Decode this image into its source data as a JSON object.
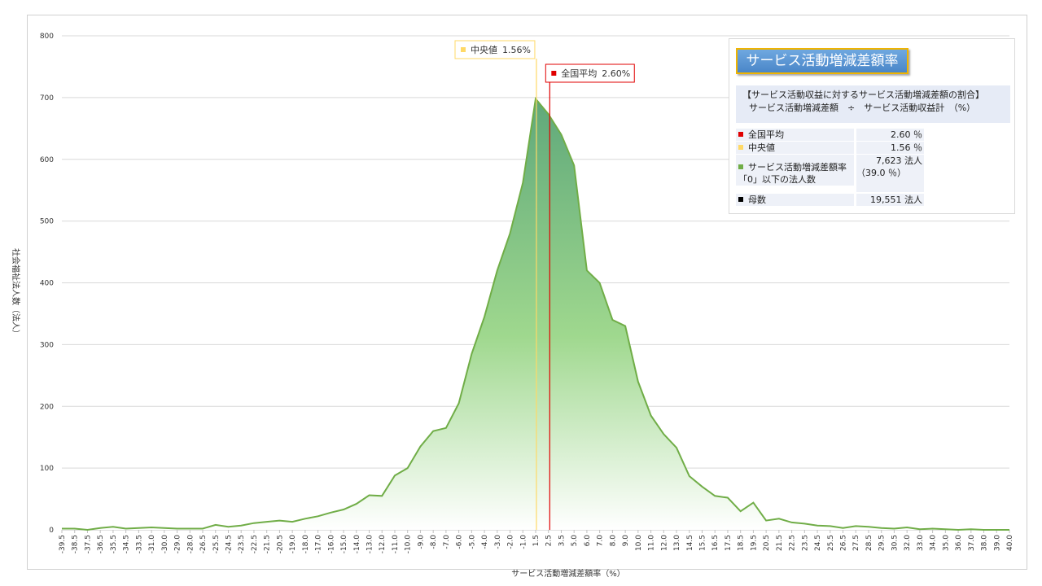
{
  "chart_data": {
    "type": "area",
    "y_label": "社会福祉法人数（法人）",
    "x_label": "サービス活動増減差額率（%）",
    "categories": [
      "-39.5",
      "-38.5",
      "-37.5",
      "-36.5",
      "-35.5",
      "-34.5",
      "-33.5",
      "-31.0",
      "-30.0",
      "-29.0",
      "-28.0",
      "-26.5",
      "-25.5",
      "-24.5",
      "-23.5",
      "-22.5",
      "-21.5",
      "-20.5",
      "-19.0",
      "-18.0",
      "-17.0",
      "-16.0",
      "-15.0",
      "-14.0",
      "-13.0",
      "-12.0",
      "-11.0",
      "-10.0",
      "-9.0",
      "-8.0",
      "-7.0",
      "-6.0",
      "-5.0",
      "-4.0",
      "-3.0",
      "-2.0",
      "-1.0",
      "1.5",
      "2.5",
      "3.5",
      "5.0",
      "6.0",
      "7.0",
      "8.0",
      "9.0",
      "10.0",
      "11.0",
      "12.0",
      "13.0",
      "14.5",
      "15.5",
      "16.5",
      "17.5",
      "18.5",
      "19.5",
      "20.5",
      "21.5",
      "22.5",
      "23.5",
      "24.5",
      "25.5",
      "26.5",
      "27.5",
      "28.5",
      "29.5",
      "30.5",
      "32.0",
      "33.0",
      "34.0",
      "35.0",
      "36.0",
      "37.0",
      "38.0",
      "39.0",
      "40.0"
    ],
    "series": [
      {
        "color": "#70ad47",
        "values": [
          2,
          2,
          0,
          3,
          5,
          2,
          3,
          4,
          3,
          2,
          2,
          2,
          8,
          5,
          7,
          11,
          13,
          15,
          13,
          18,
          22,
          28,
          33,
          42,
          56,
          55,
          88,
          100,
          135,
          160,
          165,
          205,
          285,
          345,
          420,
          480,
          562,
          698,
          673,
          640,
          590,
          420,
          400,
          340,
          330,
          240,
          185,
          155,
          133,
          87,
          70,
          55,
          52,
          30,
          44,
          15,
          18,
          12,
          10,
          7,
          6,
          3,
          6,
          5,
          3,
          2,
          4,
          1,
          2,
          1,
          0,
          1,
          0,
          0,
          0
        ]
      }
    ],
    "ylim": [
      0,
      800
    ],
    "yticks": [
      0,
      100,
      200,
      300,
      400,
      500,
      600,
      700,
      800
    ],
    "grid": true,
    "reference_lines": [
      {
        "name": "中央値",
        "value": 1.56,
        "value_label": "1.56%",
        "color": "#ffd966"
      },
      {
        "name": "全国平均",
        "value": 2.6,
        "value_label": "2.60%",
        "color": "#e00000"
      }
    ]
  },
  "info_panel": {
    "title": "サービス活動増減差額率",
    "header": [
      "【サービス活動収益に対するサービス活動増減差額の割合】",
      "サービス活動増減差額　÷　サービス活動収益計　（%）"
    ],
    "rows": [
      {
        "label": "全国平均",
        "value": "2.60 ％",
        "color": "#e00000"
      },
      {
        "label": "中央値",
        "value": "1.56 ％",
        "color": "#ffd966"
      },
      {
        "label": "サービス活動増減差額率「0」以下の法人数",
        "value": "7,623 法人",
        "sub": "（39.0 ％）",
        "color": "#70ad47"
      },
      {
        "label": "母数",
        "value": "19,551 法人",
        "color": "#000000"
      }
    ]
  }
}
